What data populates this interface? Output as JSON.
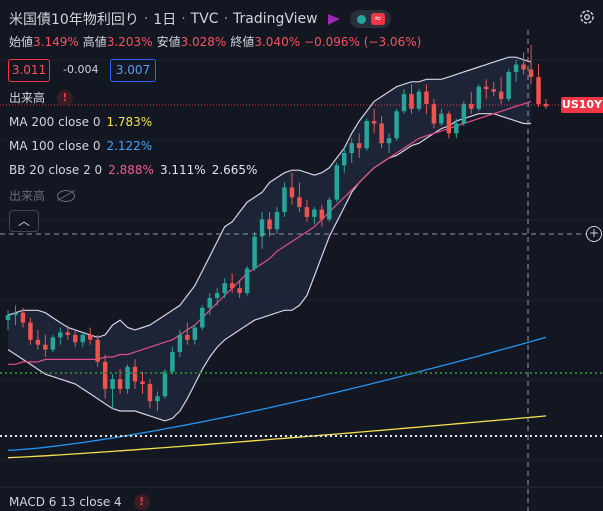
{
  "header": {
    "title": "米国債10年物利回り",
    "interval": "1日",
    "exchange": "TVC",
    "brand": "TradingView",
    "flag_color": "#9c27b0"
  },
  "ohlc": {
    "open_label": "始値",
    "open": "3.149%",
    "high_label": "高値",
    "high": "3.203%",
    "low_label": "安値",
    "low": "3.028%",
    "close_label": "終値",
    "close": "3.040%",
    "change": "−0.096% (−3.06%)"
  },
  "trade": {
    "sell": "3.011",
    "spread": "-0.004",
    "buy": "3.007"
  },
  "indicators": {
    "volume_label": "出来高",
    "ma200_label": "MA 200 close 0",
    "ma200_value": "1.783%",
    "ma200_color": "#f5e04c",
    "ma100_label": "MA 100 close 0",
    "ma100_value": "2.122%",
    "ma100_color": "#2196f3",
    "bb_label": "BB 20 close 2 0",
    "bb_basis": "2.888%",
    "bb_upper": "3.111%",
    "bb_lower": "2.665%",
    "bb_basis_color": "#e04f88",
    "bb_band_color": "#d8d0e8",
    "volume_hidden_label": "出来高",
    "macd_label": "MACD 6 13 close 4"
  },
  "symbol_tag": "US10Y",
  "colors": {
    "up": "#26a69a",
    "down": "#ef5350",
    "background": "#131722"
  },
  "chart_data": {
    "type": "candlestick",
    "y_range": [
      1.55,
      3.3
    ],
    "candles": [
      {
        "o": 2.16,
        "h": 2.2,
        "l": 2.12,
        "c": 2.18
      },
      {
        "o": 2.18,
        "h": 2.22,
        "l": 2.14,
        "c": 2.19
      },
      {
        "o": 2.19,
        "h": 2.21,
        "l": 2.13,
        "c": 2.15
      },
      {
        "o": 2.15,
        "h": 2.17,
        "l": 2.06,
        "c": 2.08
      },
      {
        "o": 2.08,
        "h": 2.12,
        "l": 2.04,
        "c": 2.06
      },
      {
        "o": 2.06,
        "h": 2.1,
        "l": 2.01,
        "c": 2.04
      },
      {
        "o": 2.04,
        "h": 2.1,
        "l": 2.03,
        "c": 2.09
      },
      {
        "o": 2.09,
        "h": 2.13,
        "l": 2.06,
        "c": 2.11
      },
      {
        "o": 2.11,
        "h": 2.14,
        "l": 2.08,
        "c": 2.1
      },
      {
        "o": 2.1,
        "h": 2.12,
        "l": 2.05,
        "c": 2.07
      },
      {
        "o": 2.07,
        "h": 2.11,
        "l": 2.05,
        "c": 2.1
      },
      {
        "o": 2.1,
        "h": 2.13,
        "l": 2.06,
        "c": 2.08
      },
      {
        "o": 2.08,
        "h": 2.1,
        "l": 1.97,
        "c": 1.99
      },
      {
        "o": 1.99,
        "h": 2.02,
        "l": 1.84,
        "c": 1.88
      },
      {
        "o": 1.88,
        "h": 1.94,
        "l": 1.8,
        "c": 1.92
      },
      {
        "o": 1.92,
        "h": 1.96,
        "l": 1.86,
        "c": 1.88
      },
      {
        "o": 1.88,
        "h": 1.98,
        "l": 1.86,
        "c": 1.97
      },
      {
        "o": 1.97,
        "h": 2.0,
        "l": 1.88,
        "c": 1.91
      },
      {
        "o": 1.91,
        "h": 1.95,
        "l": 1.86,
        "c": 1.9
      },
      {
        "o": 1.9,
        "h": 1.92,
        "l": 1.8,
        "c": 1.83
      },
      {
        "o": 1.83,
        "h": 1.87,
        "l": 1.79,
        "c": 1.85
      },
      {
        "o": 1.85,
        "h": 1.96,
        "l": 1.84,
        "c": 1.95
      },
      {
        "o": 1.95,
        "h": 2.05,
        "l": 1.94,
        "c": 2.03
      },
      {
        "o": 2.03,
        "h": 2.12,
        "l": 2.01,
        "c": 2.1
      },
      {
        "o": 2.1,
        "h": 2.15,
        "l": 2.06,
        "c": 2.08
      },
      {
        "o": 2.08,
        "h": 2.14,
        "l": 2.06,
        "c": 2.13
      },
      {
        "o": 2.13,
        "h": 2.22,
        "l": 2.12,
        "c": 2.21
      },
      {
        "o": 2.21,
        "h": 2.27,
        "l": 2.18,
        "c": 2.25
      },
      {
        "o": 2.25,
        "h": 2.29,
        "l": 2.22,
        "c": 2.27
      },
      {
        "o": 2.27,
        "h": 2.33,
        "l": 2.25,
        "c": 2.31
      },
      {
        "o": 2.31,
        "h": 2.35,
        "l": 2.27,
        "c": 2.29
      },
      {
        "o": 2.29,
        "h": 2.32,
        "l": 2.25,
        "c": 2.27
      },
      {
        "o": 2.27,
        "h": 2.38,
        "l": 2.26,
        "c": 2.37
      },
      {
        "o": 2.37,
        "h": 2.52,
        "l": 2.36,
        "c": 2.5
      },
      {
        "o": 2.5,
        "h": 2.6,
        "l": 2.45,
        "c": 2.57
      },
      {
        "o": 2.57,
        "h": 2.6,
        "l": 2.5,
        "c": 2.53
      },
      {
        "o": 2.53,
        "h": 2.62,
        "l": 2.51,
        "c": 2.6
      },
      {
        "o": 2.6,
        "h": 2.72,
        "l": 2.58,
        "c": 2.7
      },
      {
        "o": 2.7,
        "h": 2.76,
        "l": 2.63,
        "c": 2.66
      },
      {
        "o": 2.66,
        "h": 2.72,
        "l": 2.6,
        "c": 2.62
      },
      {
        "o": 2.62,
        "h": 2.65,
        "l": 2.56,
        "c": 2.58
      },
      {
        "o": 2.58,
        "h": 2.62,
        "l": 2.55,
        "c": 2.61
      },
      {
        "o": 2.61,
        "h": 2.63,
        "l": 2.54,
        "c": 2.57
      },
      {
        "o": 2.57,
        "h": 2.66,
        "l": 2.56,
        "c": 2.65
      },
      {
        "o": 2.65,
        "h": 2.8,
        "l": 2.64,
        "c": 2.79
      },
      {
        "o": 2.79,
        "h": 2.86,
        "l": 2.76,
        "c": 2.84
      },
      {
        "o": 2.84,
        "h": 2.9,
        "l": 2.8,
        "c": 2.88
      },
      {
        "o": 2.88,
        "h": 2.92,
        "l": 2.82,
        "c": 2.86
      },
      {
        "o": 2.86,
        "h": 2.98,
        "l": 2.85,
        "c": 2.97
      },
      {
        "o": 2.97,
        "h": 3.02,
        "l": 2.92,
        "c": 2.96
      },
      {
        "o": 2.96,
        "h": 2.99,
        "l": 2.86,
        "c": 2.88
      },
      {
        "o": 2.88,
        "h": 2.92,
        "l": 2.84,
        "c": 2.9
      },
      {
        "o": 2.9,
        "h": 3.02,
        "l": 2.89,
        "c": 3.01
      },
      {
        "o": 3.01,
        "h": 3.1,
        "l": 3.0,
        "c": 3.08
      },
      {
        "o": 3.08,
        "h": 3.12,
        "l": 3.0,
        "c": 3.02
      },
      {
        "o": 3.02,
        "h": 3.1,
        "l": 3.01,
        "c": 3.09
      },
      {
        "o": 3.09,
        "h": 3.12,
        "l": 3.0,
        "c": 3.04
      },
      {
        "o": 3.04,
        "h": 3.06,
        "l": 2.94,
        "c": 2.96
      },
      {
        "o": 2.96,
        "h": 3.02,
        "l": 2.95,
        "c": 3.0
      },
      {
        "o": 3.0,
        "h": 3.01,
        "l": 2.9,
        "c": 2.92
      },
      {
        "o": 2.92,
        "h": 2.98,
        "l": 2.9,
        "c": 2.96
      },
      {
        "o": 2.96,
        "h": 3.05,
        "l": 2.95,
        "c": 3.04
      },
      {
        "o": 3.04,
        "h": 3.09,
        "l": 3.0,
        "c": 3.02
      },
      {
        "o": 3.02,
        "h": 3.12,
        "l": 3.01,
        "c": 3.11
      },
      {
        "o": 3.11,
        "h": 3.14,
        "l": 3.06,
        "c": 3.1
      },
      {
        "o": 3.1,
        "h": 3.13,
        "l": 3.07,
        "c": 3.09
      },
      {
        "o": 3.09,
        "h": 3.15,
        "l": 3.04,
        "c": 3.06
      },
      {
        "o": 3.06,
        "h": 3.18,
        "l": 3.05,
        "c": 3.17
      },
      {
        "o": 3.17,
        "h": 3.22,
        "l": 3.13,
        "c": 3.2
      },
      {
        "o": 3.2,
        "h": 3.25,
        "l": 3.16,
        "c": 3.18
      },
      {
        "o": 3.18,
        "h": 3.28,
        "l": 3.12,
        "c": 3.15
      },
      {
        "o": 3.149,
        "h": 3.203,
        "l": 3.028,
        "c": 3.04
      },
      {
        "o": 3.04,
        "h": 3.06,
        "l": 3.02,
        "c": 3.03
      }
    ],
    "ma200": [
      1.6,
      1.77
    ],
    "ma100": [
      1.63,
      2.09
    ],
    "bb_basis": [
      2.0,
      2.96
    ],
    "bb_upper": [
      2.18,
      3.21
    ],
    "bb_lower": [
      1.92,
      2.74
    ]
  }
}
